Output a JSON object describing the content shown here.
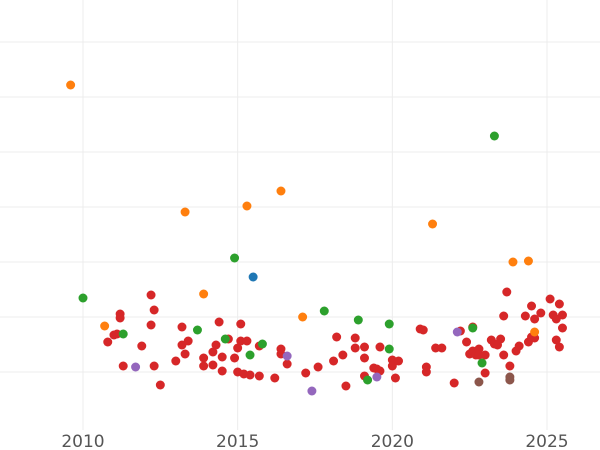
{
  "chart_data": {
    "type": "scatter",
    "title": "",
    "xlabel": "",
    "ylabel": "",
    "xlim": [
      2009.0,
      2026.8
    ],
    "ylim": [
      0,
      430
    ],
    "x_ticks": [
      2010,
      2015,
      2020,
      2025
    ],
    "x_tick_labels": [
      "2010",
      "2015",
      "2020",
      "2025"
    ],
    "y_gridlines": [
      42,
      97,
      152,
      207,
      262,
      317,
      372
    ],
    "grid": true,
    "legend": "none",
    "series": [
      {
        "color": "#d62728",
        "points": [
          [
            2010.8,
            342
          ],
          [
            2011.0,
            335
          ],
          [
            2011.1,
            334
          ],
          [
            2011.2,
            314
          ],
          [
            2011.2,
            318
          ],
          [
            2011.3,
            366
          ],
          [
            2011.9,
            346
          ],
          [
            2012.2,
            295
          ],
          [
            2012.2,
            325
          ],
          [
            2012.3,
            310
          ],
          [
            2012.3,
            366
          ],
          [
            2012.5,
            385
          ],
          [
            2013.0,
            361
          ],
          [
            2013.2,
            345
          ],
          [
            2013.2,
            327
          ],
          [
            2013.3,
            354
          ],
          [
            2013.4,
            341
          ],
          [
            2013.9,
            358
          ],
          [
            2013.9,
            366
          ],
          [
            2014.2,
            352
          ],
          [
            2014.2,
            365
          ],
          [
            2014.3,
            345
          ],
          [
            2014.4,
            322
          ],
          [
            2014.5,
            371
          ],
          [
            2014.5,
            357
          ],
          [
            2014.7,
            339
          ],
          [
            2014.9,
            358
          ],
          [
            2015.0,
            348
          ],
          [
            2015.0,
            372
          ],
          [
            2015.1,
            341
          ],
          [
            2015.1,
            324
          ],
          [
            2015.2,
            374
          ],
          [
            2015.3,
            341
          ],
          [
            2015.4,
            375
          ],
          [
            2015.7,
            376
          ],
          [
            2015.7,
            346
          ],
          [
            2016.2,
            378
          ],
          [
            2016.4,
            349
          ],
          [
            2016.4,
            354
          ],
          [
            2016.6,
            364
          ],
          [
            2017.2,
            373
          ],
          [
            2017.6,
            367
          ],
          [
            2018.1,
            361
          ],
          [
            2018.2,
            337
          ],
          [
            2018.4,
            355
          ],
          [
            2018.5,
            386
          ],
          [
            2018.8,
            338
          ],
          [
            2018.8,
            348
          ],
          [
            2019.1,
            376
          ],
          [
            2019.1,
            358
          ],
          [
            2019.1,
            347
          ],
          [
            2019.4,
            368
          ],
          [
            2019.5,
            369
          ],
          [
            2019.6,
            371
          ],
          [
            2019.6,
            347
          ],
          [
            2020.0,
            360
          ],
          [
            2020.0,
            366
          ],
          [
            2020.1,
            378
          ],
          [
            2020.2,
            361
          ],
          [
            2020.9,
            329
          ],
          [
            2021.0,
            330
          ],
          [
            2021.1,
            372
          ],
          [
            2021.1,
            367
          ],
          [
            2021.4,
            348
          ],
          [
            2021.6,
            348
          ],
          [
            2022.0,
            383
          ],
          [
            2022.2,
            331
          ],
          [
            2022.4,
            342
          ],
          [
            2022.5,
            354
          ],
          [
            2022.6,
            327
          ],
          [
            2022.6,
            351
          ],
          [
            2022.7,
            355
          ],
          [
            2022.8,
            349
          ],
          [
            2022.8,
            355
          ],
          [
            2023.0,
            373
          ],
          [
            2023.0,
            355
          ],
          [
            2023.2,
            340
          ],
          [
            2023.3,
            344
          ],
          [
            2023.4,
            345
          ],
          [
            2023.5,
            339
          ],
          [
            2023.6,
            316
          ],
          [
            2023.6,
            355
          ],
          [
            2023.7,
            292
          ],
          [
            2023.8,
            366
          ],
          [
            2024.0,
            351
          ],
          [
            2024.1,
            346
          ],
          [
            2024.4,
            342
          ],
          [
            2024.5,
            337
          ],
          [
            2024.5,
            306
          ],
          [
            2024.6,
            338
          ],
          [
            2024.6,
            319
          ],
          [
            2024.8,
            313
          ],
          [
            2025.1,
            299
          ],
          [
            2025.2,
            315
          ],
          [
            2025.3,
            319
          ],
          [
            2025.3,
            340
          ],
          [
            2025.4,
            347
          ],
          [
            2025.4,
            304
          ],
          [
            2025.5,
            328
          ],
          [
            2025.5,
            315
          ],
          [
            2024.3,
            316
          ]
        ]
      },
      {
        "color": "#ff7f0e",
        "points": [
          [
            2009.6,
            85
          ],
          [
            2010.7,
            326
          ],
          [
            2013.3,
            212
          ],
          [
            2013.9,
            294
          ],
          [
            2015.3,
            206
          ],
          [
            2016.4,
            191
          ],
          [
            2017.1,
            317
          ],
          [
            2021.3,
            224
          ],
          [
            2023.9,
            262
          ],
          [
            2024.4,
            261
          ],
          [
            2024.6,
            332
          ]
        ]
      },
      {
        "color": "#2ca02c",
        "points": [
          [
            2010.0,
            298
          ],
          [
            2011.3,
            334
          ],
          [
            2013.7,
            330
          ],
          [
            2014.6,
            339
          ],
          [
            2014.9,
            258
          ],
          [
            2015.4,
            355
          ],
          [
            2015.8,
            344
          ],
          [
            2017.8,
            311
          ],
          [
            2018.9,
            320
          ],
          [
            2019.2,
            380
          ],
          [
            2019.9,
            349
          ],
          [
            2019.9,
            324
          ],
          [
            2022.6,
            328
          ],
          [
            2022.9,
            363
          ],
          [
            2023.3,
            136
          ]
        ]
      },
      {
        "color": "#9467bd",
        "points": [
          [
            2011.7,
            367
          ],
          [
            2016.6,
            356
          ],
          [
            2017.4,
            391
          ],
          [
            2019.5,
            377
          ],
          [
            2022.1,
            332
          ]
        ]
      },
      {
        "color": "#8c564b",
        "points": [
          [
            2022.8,
            382
          ],
          [
            2023.8,
            377
          ],
          [
            2023.8,
            380
          ]
        ]
      },
      {
        "color": "#1f77b4",
        "points": [
          [
            2015.5,
            277
          ]
        ]
      }
    ]
  }
}
